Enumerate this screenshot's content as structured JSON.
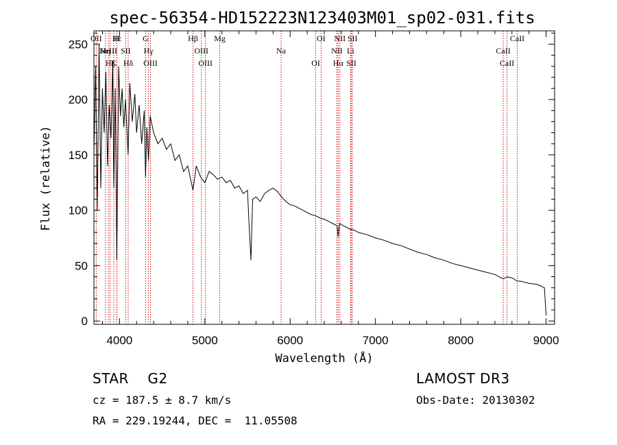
{
  "chart_data": {
    "type": "line",
    "title": "spec-56354-HD152223N123403M01_sp02-031.fits",
    "xlabel": "Wavelength (Å)",
    "ylabel": "Flux (relative)",
    "xlim": [
      3700,
      9100
    ],
    "ylim": [
      -3,
      262
    ],
    "xticks": [
      4000,
      5000,
      6000,
      7000,
      8000,
      9000
    ],
    "yticks": [
      0,
      50,
      100,
      150,
      200,
      250
    ],
    "series": [
      {
        "name": "flux",
        "x": [
          3700,
          3720,
          3740,
          3760,
          3780,
          3800,
          3820,
          3840,
          3860,
          3880,
          3900,
          3920,
          3933,
          3950,
          3968,
          3990,
          4010,
          4030,
          4050,
          4070,
          4101,
          4120,
          4150,
          4180,
          4200,
          4230,
          4260,
          4290,
          4305,
          4320,
          4340,
          4360,
          4400,
          4450,
          4500,
          4550,
          4600,
          4650,
          4700,
          4750,
          4800,
          4861,
          4900,
          4950,
          5000,
          5050,
          5100,
          5150,
          5200,
          5250,
          5300,
          5350,
          5400,
          5450,
          5500,
          5520,
          5540,
          5560,
          5600,
          5650,
          5700,
          5750,
          5800,
          5850,
          5900,
          5950,
          6000,
          6050,
          6100,
          6150,
          6200,
          6250,
          6300,
          6350,
          6400,
          6450,
          6500,
          6550,
          6563,
          6580,
          6600,
          6650,
          6700,
          6750,
          6800,
          6900,
          7000,
          7100,
          7200,
          7300,
          7400,
          7500,
          7600,
          7700,
          7800,
          7900,
          8000,
          8100,
          8200,
          8300,
          8400,
          8498,
          8542,
          8600,
          8662,
          8700,
          8800,
          8900,
          8980,
          9000
        ],
        "y": [
          150,
          230,
          100,
          250,
          120,
          210,
          170,
          225,
          140,
          195,
          165,
          235,
          120,
          210,
          55,
          230,
          185,
          210,
          175,
          200,
          150,
          215,
          180,
          205,
          170,
          195,
          160,
          190,
          130,
          175,
          145,
          185,
          170,
          160,
          165,
          155,
          160,
          145,
          150,
          135,
          140,
          118,
          140,
          130,
          125,
          135,
          132,
          128,
          130,
          125,
          127,
          120,
          122,
          115,
          118,
          85,
          55,
          110,
          112,
          108,
          115,
          118,
          120,
          117,
          112,
          108,
          105,
          104,
          102,
          100,
          98,
          96,
          95,
          93,
          92,
          90,
          88,
          86,
          76,
          88,
          87,
          85,
          83,
          82,
          80,
          78,
          75,
          73,
          70,
          68,
          65,
          62,
          60,
          57,
          55,
          52,
          50,
          48,
          46,
          44,
          42,
          38,
          40,
          39,
          36,
          36,
          34,
          33,
          30,
          5
        ]
      }
    ],
    "lines": [
      {
        "name": "OII",
        "wave": 3727
      },
      {
        "name": "Hη",
        "wave": 3835
      },
      {
        "name": "Hζ",
        "wave": 3889
      },
      {
        "name": "Hε",
        "wave": 3970
      },
      {
        "name": "NeIII",
        "wave": 3869
      },
      {
        "name": "K",
        "wave": 3933
      },
      {
        "name": "H",
        "wave": 3968
      },
      {
        "name": "SII",
        "wave": 4072
      },
      {
        "name": "Hδ",
        "wave": 4102
      },
      {
        "name": "G",
        "wave": 4305
      },
      {
        "name": "Hγ",
        "wave": 4340
      },
      {
        "name": "OIII",
        "wave": 4363
      },
      {
        "name": "Hβ",
        "wave": 4861
      },
      {
        "name": "OIII",
        "wave": 4959
      },
      {
        "name": "OIII",
        "wave": 5007
      },
      {
        "name": "Mg",
        "wave": 5175
      },
      {
        "name": "Na",
        "wave": 5894
      },
      {
        "name": "OI",
        "wave": 6300
      },
      {
        "name": "OI",
        "wave": 6363
      },
      {
        "name": "NII",
        "wave": 6548
      },
      {
        "name": "Hα",
        "wave": 6563
      },
      {
        "name": "NII",
        "wave": 6583
      },
      {
        "name": "Li",
        "wave": 6708
      },
      {
        "name": "SII",
        "wave": 6717
      },
      {
        "name": "SII",
        "wave": 6731
      },
      {
        "name": "CaII",
        "wave": 8498
      },
      {
        "name": "CaII",
        "wave": 8542
      },
      {
        "name": "CaII",
        "wave": 8662
      }
    ]
  },
  "info": {
    "object_type": "STAR",
    "subclass": "G2",
    "survey": "LAMOST DR3",
    "cz": "cz = 187.5 ± 8.7 km/s",
    "obs_date": "Obs-Date: 20130302",
    "radec": "RA = 229.19244, DEC =  11.05508"
  },
  "colors": {
    "spectrum": "#000000",
    "line_marker": "#cc0000",
    "axes": "#000000"
  }
}
